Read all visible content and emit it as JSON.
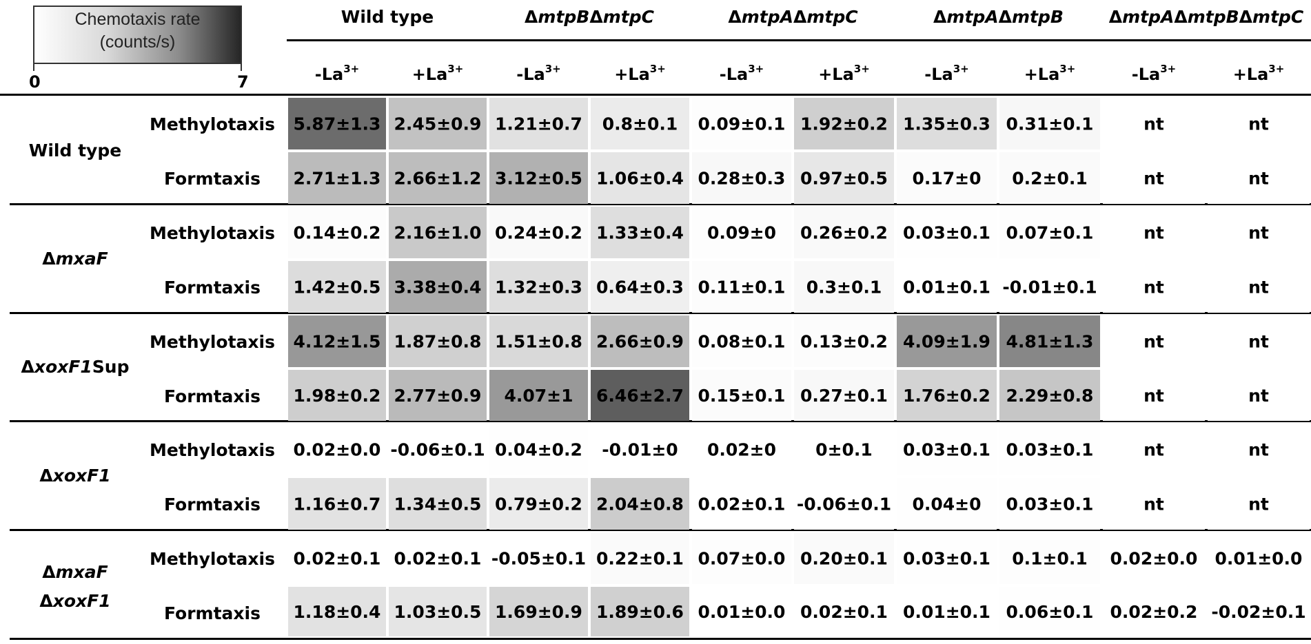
{
  "chart_data": {
    "type": "heatmap",
    "colorbar": {
      "title": "Chemotaxis rate\n(counts/s)",
      "min": 0,
      "max": 7,
      "min_label": "0",
      "max_label": "7",
      "colors": [
        "#ffffff",
        "#262626"
      ]
    },
    "mutant_strains": [
      "Wild type",
      "ΔmtpBΔmtpC",
      "ΔmtpAΔmtpC",
      "ΔmtpAΔmtpB",
      "ΔmtpAΔmtpBΔmtpC"
    ],
    "conditions": [
      "-La3+",
      "+La3+"
    ],
    "rows": [
      {
        "strain": "Wild type",
        "assay": "Methylotaxis",
        "means": [
          5.87,
          2.45,
          1.21,
          0.8,
          0.09,
          1.92,
          1.35,
          0.31,
          null,
          null
        ],
        "labels": [
          "5.87±1.3",
          "2.45±0.9",
          "1.21±0.7",
          "0.8±0.1",
          "0.09±0.1",
          "1.92±0.2",
          "1.35±0.3",
          "0.31±0.1",
          "nt",
          "nt"
        ]
      },
      {
        "strain": "Wild type",
        "assay": "Formtaxis",
        "means": [
          2.71,
          2.66,
          3.12,
          1.06,
          0.28,
          0.97,
          0.17,
          0.2,
          null,
          null
        ],
        "labels": [
          "2.71±1.3",
          "2.66±1.2",
          "3.12±0.5",
          "1.06±0.4",
          "0.28±0.3",
          "0.97±0.5",
          "0.17±0",
          "0.2±0.1",
          "nt",
          "nt"
        ]
      },
      {
        "strain": "ΔmxaF",
        "assay": "Methylotaxis",
        "means": [
          0.14,
          2.16,
          0.24,
          1.33,
          0.09,
          0.26,
          0.03,
          0.07,
          null,
          null
        ],
        "labels": [
          "0.14±0.2",
          "2.16±1.0",
          "0.24±0.2",
          "1.33±0.4",
          "0.09±0",
          "0.26±0.2",
          "0.03±0.1",
          "0.07±0.1",
          "nt",
          "nt"
        ]
      },
      {
        "strain": "ΔmxaF",
        "assay": "Formtaxis",
        "means": [
          1.42,
          3.38,
          1.32,
          0.64,
          0.11,
          0.3,
          0.01,
          -0.01,
          null,
          null
        ],
        "labels": [
          "1.42±0.5",
          "3.38±0.4",
          "1.32±0.3",
          "0.64±0.3",
          "0.11±0.1",
          "0.3±0.1",
          "0.01±0.1",
          "-0.01±0.1",
          "nt",
          "nt"
        ]
      },
      {
        "strain": "ΔxoxF1Sup",
        "assay": "Methylotaxis",
        "means": [
          4.12,
          1.87,
          1.51,
          2.66,
          0.08,
          0.13,
          4.09,
          4.81,
          null,
          null
        ],
        "labels": [
          "4.12±1.5",
          "1.87±0.8",
          "1.51±0.8",
          "2.66±0.9",
          "0.08±0.1",
          "0.13±0.2",
          "4.09±1.9",
          "4.81±1.3",
          "nt",
          "nt"
        ]
      },
      {
        "strain": "ΔxoxF1Sup",
        "assay": "Formtaxis",
        "means": [
          1.98,
          2.77,
          4.07,
          6.46,
          0.15,
          0.27,
          1.76,
          2.29,
          null,
          null
        ],
        "labels": [
          "1.98±0.2",
          "2.77±0.9",
          "4.07±1",
          "6.46±2.7",
          "0.15±0.1",
          "0.27±0.1",
          "1.76±0.2",
          "2.29±0.8",
          "nt",
          "nt"
        ]
      },
      {
        "strain": "ΔxoxF1",
        "assay": "Methylotaxis",
        "means": [
          0.02,
          -0.06,
          0.04,
          -0.01,
          0.02,
          0,
          0.03,
          0.03,
          null,
          null
        ],
        "labels": [
          "0.02±0.0",
          "-0.06±0.1",
          "0.04±0.2",
          "-0.01±0",
          "0.02±0",
          "0±0.1",
          "0.03±0.1",
          "0.03±0.1",
          "nt",
          "nt"
        ]
      },
      {
        "strain": "ΔxoxF1",
        "assay": "Formtaxis",
        "means": [
          1.16,
          1.34,
          0.79,
          2.04,
          0.02,
          -0.06,
          0.04,
          0.03,
          null,
          null
        ],
        "labels": [
          "1.16±0.7",
          "1.34±0.5",
          "0.79±0.2",
          "2.04±0.8",
          "0.02±0.1",
          "-0.06±0.1",
          "0.04±0",
          "0.03±0.1",
          "nt",
          "nt"
        ]
      },
      {
        "strain": "ΔmxaF ΔxoxF1",
        "assay": "Methylotaxis",
        "means": [
          0.02,
          0.02,
          -0.05,
          0.22,
          0.07,
          0.2,
          0.03,
          0.1,
          0.02,
          0.01
        ],
        "labels": [
          "0.02±0.1",
          "0.02±0.1",
          "-0.05±0.1",
          "0.22±0.1",
          "0.07±0.0",
          "0.20±0.1",
          "0.03±0.1",
          "0.1±0.1",
          "0.02±0.0",
          "0.01±0.0"
        ]
      },
      {
        "strain": "ΔmxaF ΔxoxF1",
        "assay": "Formtaxis",
        "means": [
          1.18,
          1.03,
          1.69,
          1.89,
          0.01,
          0.02,
          0.01,
          0.06,
          0.02,
          -0.02
        ],
        "labels": [
          "1.18±0.4",
          "1.03±0.5",
          "1.69±0.9",
          "1.89±0.6",
          "0.01±0.0",
          "0.02±0.1",
          "0.01±0.1",
          "0.06±0.1",
          "0.02±0.2",
          "-0.02±0.1"
        ]
      }
    ]
  }
}
